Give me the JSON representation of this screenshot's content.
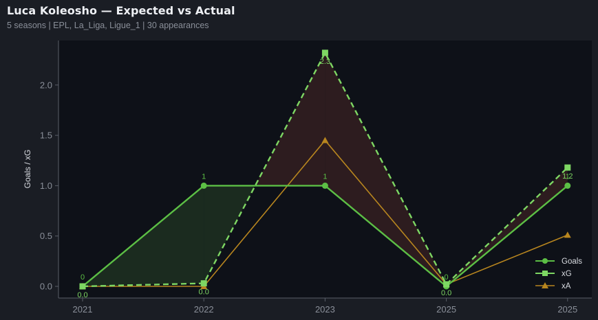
{
  "header": {
    "title": "Luca Koleosho — Expected vs Actual",
    "subtitle": "5 seasons | EPL, La_Liga, Ligue_1 | 30 appearances"
  },
  "colors": {
    "background": "#1a1d24",
    "plot_background": "#0e1118",
    "axis": "#5a5f69",
    "goals": "#5cbf45",
    "xg": "#7ed763",
    "xa": "#b8861f",
    "over_fill": "#1b2b1f",
    "under_fill": "#2d1c1f"
  },
  "chart_data": {
    "type": "line",
    "title": "Luca Koleosho — Expected vs Actual",
    "subtitle": "5 seasons | EPL, La_Liga, Ligue_1 | 30 appearances",
    "xlabel": "",
    "ylabel": "Goals / xG",
    "categories": [
      "2021",
      "2022",
      "2023",
      "2025",
      "2025"
    ],
    "ylim": [
      -0.1,
      2.4
    ],
    "yticks": [
      0.0,
      0.5,
      1.0,
      1.5,
      2.0
    ],
    "ytick_labels": [
      "0.0",
      "0.5",
      "1.0",
      "1.5",
      "2.0"
    ],
    "grid": false,
    "legend_position": "lower right",
    "series": [
      {
        "name": "Goals",
        "values": [
          0,
          1,
          1,
          0,
          1
        ],
        "marker": "circle",
        "style": "solid",
        "labels": [
          "0",
          "1",
          "1",
          "0",
          "1"
        ]
      },
      {
        "name": "xG",
        "values": [
          0.0,
          0.03,
          2.32,
          0.02,
          1.18
        ],
        "marker": "square",
        "style": "dashed",
        "labels": [
          "0.0",
          "0.0",
          "2.3",
          "0.0",
          "1.2"
        ]
      },
      {
        "name": "xA",
        "values": [
          0.0,
          0.0,
          1.45,
          0.02,
          0.51
        ],
        "marker": "triangle",
        "style": "solid"
      }
    ],
    "fill_between": {
      "series_a": "Goals",
      "series_b": "xG",
      "above_color": "green",
      "below_color": "red"
    }
  },
  "legend": {
    "items": [
      {
        "label": "Goals"
      },
      {
        "label": "xG"
      },
      {
        "label": "xA"
      }
    ]
  }
}
